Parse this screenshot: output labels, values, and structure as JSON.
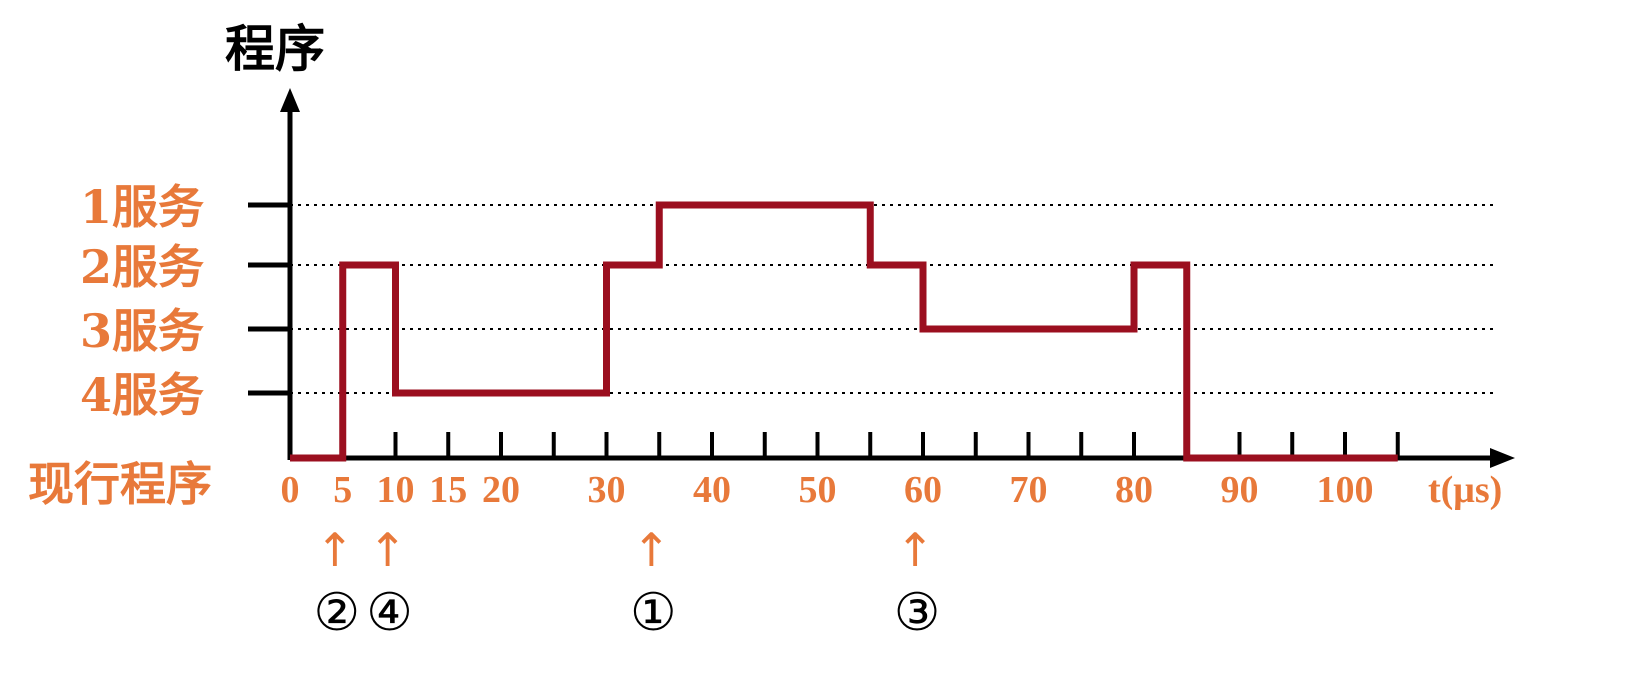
{
  "chart_data": {
    "type": "line",
    "title": "程序",
    "xlabel": "t(μs)",
    "ylabel": "程序",
    "xlim": [
      0,
      105
    ],
    "y_levels": [
      {
        "label": "现行程序",
        "level": 0
      },
      {
        "label": "4服务",
        "level": 1
      },
      {
        "label": "3服务",
        "level": 2
      },
      {
        "label": "2服务",
        "level": 3
      },
      {
        "label": "1服务",
        "level": 4
      }
    ],
    "x_tick_labels": [
      {
        "value": 0,
        "label": "0"
      },
      {
        "value": 5,
        "label": "5"
      },
      {
        "value": 10,
        "label": "10"
      },
      {
        "value": 15,
        "label": "15"
      },
      {
        "value": 20,
        "label": "20"
      },
      {
        "value": 30,
        "label": "30"
      },
      {
        "value": 40,
        "label": "40"
      },
      {
        "value": 50,
        "label": "50"
      },
      {
        "value": 60,
        "label": "60"
      },
      {
        "value": 70,
        "label": "70"
      },
      {
        "value": 80,
        "label": "80"
      },
      {
        "value": 90,
        "label": "90"
      },
      {
        "value": 100,
        "label": "100"
      }
    ],
    "tick_every": 5,
    "grid": "dotted horizontal at service levels",
    "series": [
      {
        "color": "#9b0f1f",
        "steps": [
          {
            "from": 0,
            "to": 5,
            "level": 0
          },
          {
            "from": 5,
            "to": 10,
            "level": 3
          },
          {
            "from": 10,
            "to": 30,
            "level": 1
          },
          {
            "from": 30,
            "to": 35,
            "level": 3
          },
          {
            "from": 35,
            "to": 55,
            "level": 4
          },
          {
            "from": 55,
            "to": 60,
            "level": 3
          },
          {
            "from": 60,
            "to": 80,
            "level": 2
          },
          {
            "from": 80,
            "to": 85,
            "level": 3
          },
          {
            "from": 85,
            "to": 105,
            "level": 0
          }
        ]
      }
    ],
    "annotations": [
      {
        "x": 5,
        "arrow": "↑",
        "label": "②"
      },
      {
        "x": 10,
        "arrow": "↑",
        "label": "④"
      },
      {
        "x": 35,
        "arrow": "↑",
        "label": "①"
      },
      {
        "x": 60,
        "arrow": "↑",
        "label": "③"
      }
    ],
    "colors": {
      "axis": "#000000",
      "line": "#9b0f1f",
      "label": "#e8793a",
      "arrow": "#e8793a",
      "grid": "#000000"
    }
  }
}
